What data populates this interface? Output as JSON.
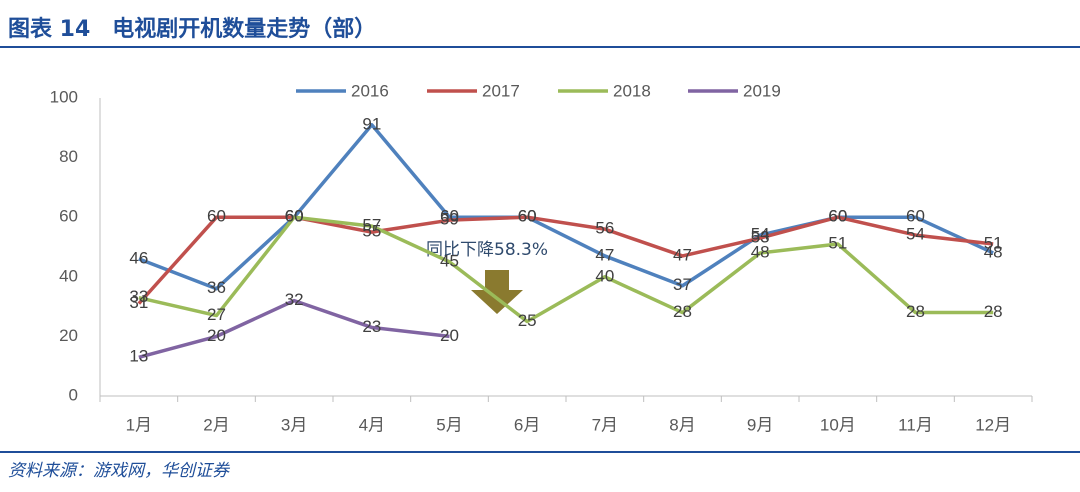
{
  "chart_data": {
    "type": "line",
    "title": "图表 14　电视剧开机数量走势（部）",
    "source": "资料来源：游戏网，华创证券",
    "annotation": "同比下降58.3%",
    "categories": [
      "1月",
      "2月",
      "3月",
      "4月",
      "5月",
      "6月",
      "7月",
      "8月",
      "9月",
      "10月",
      "11月",
      "12月"
    ],
    "series": [
      {
        "name": "2016",
        "color": "#4f81bd",
        "values": [
          46,
          36,
          60,
          91,
          60,
          60,
          47,
          37,
          54,
          60,
          60,
          48
        ]
      },
      {
        "name": "2017",
        "color": "#c0504d",
        "values": [
          31,
          60,
          60,
          55,
          59,
          60,
          56,
          47,
          53,
          60,
          54,
          51
        ]
      },
      {
        "name": "2018",
        "color": "#9bbb59",
        "values": [
          33,
          27,
          60,
          57,
          45,
          25,
          40,
          28,
          48,
          51,
          28,
          28
        ]
      },
      {
        "name": "2019",
        "color": "#8064a2",
        "values": [
          13,
          20,
          32,
          23,
          20,
          null,
          null,
          null,
          null,
          null,
          null,
          null
        ]
      }
    ],
    "ylim": [
      0,
      100
    ],
    "yticks": [
      0,
      20,
      40,
      60,
      80,
      100
    ],
    "legend": "top"
  }
}
